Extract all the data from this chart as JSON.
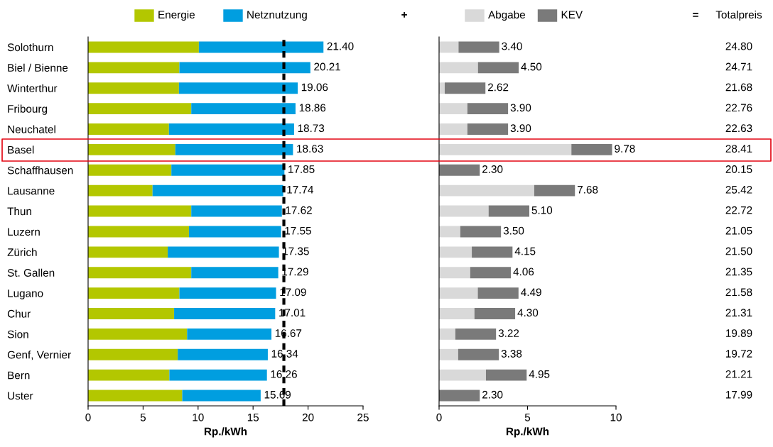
{
  "chart_data": [
    {
      "type": "bar",
      "orientation": "horizontal",
      "stacked": true,
      "xlabel": "Rp./kWh",
      "legend": "top",
      "categories": [
        "Solothurn",
        "Biel / Bienne",
        "Winterthur",
        "Fribourg",
        "Neuchatel",
        "Basel",
        "Schaffhausen",
        "Lausanne",
        "Thun",
        "Luzern",
        "Zürich",
        "St. Gallen",
        "Lugano",
        "Chur",
        "Sion",
        "Genf, Vernier",
        "Bern",
        "Uster"
      ],
      "series": [
        {
          "name": "Energie",
          "color": "#b3c700",
          "values": [
            10.07,
            8.3,
            8.26,
            9.38,
            7.35,
            7.93,
            7.57,
            5.86,
            9.38,
            9.17,
            7.24,
            9.38,
            8.3,
            7.82,
            9.0,
            8.15,
            7.39,
            8.56
          ]
        },
        {
          "name": "Netznutzung",
          "color": "#009ee0",
          "values": [
            11.33,
            11.91,
            10.8,
            9.48,
            11.38,
            10.7,
            10.28,
            11.88,
            8.24,
            8.38,
            10.11,
            7.91,
            8.79,
            9.19,
            7.67,
            8.19,
            8.87,
            7.13
          ]
        }
      ],
      "totals": [
        "21.40",
        "20.21",
        "19.06",
        "18.86",
        "18.73",
        "18.63",
        "17.85",
        "17.74",
        "17.62",
        "17.55",
        "17.35",
        "17.29",
        "17.09",
        "17.01",
        "16.67",
        "16.34",
        "16.26",
        "15.69"
      ],
      "xlim": [
        0,
        25
      ],
      "xticks": [
        0,
        5,
        10,
        15,
        20,
        25
      ],
      "ref_lines": [
        {
          "axis": "x",
          "value": 17.8,
          "color": "#000000",
          "line_style": "dashed"
        }
      ],
      "annotations": [
        "+"
      ]
    },
    {
      "type": "bar",
      "orientation": "horizontal",
      "stacked": true,
      "xlabel": "Rp./kWh",
      "legend": "top",
      "tick_labels": "x",
      "categories": [
        null,
        null,
        null,
        null,
        null,
        null,
        null,
        null,
        null,
        null,
        null,
        null,
        null,
        null,
        null,
        null,
        null,
        null
      ],
      "series": [
        {
          "name": "Abgabe",
          "color": "#d9d9d9",
          "values": [
            1.1,
            2.2,
            0.32,
            1.6,
            1.6,
            7.48,
            0,
            5.38,
            2.8,
            1.2,
            1.85,
            1.76,
            2.19,
            2.0,
            0.92,
            1.08,
            2.65,
            0
          ]
        },
        {
          "name": "KEV",
          "color": "#7a7a7a",
          "values": [
            2.3,
            2.3,
            2.3,
            2.3,
            2.3,
            2.3,
            2.3,
            2.3,
            2.3,
            2.3,
            2.3,
            2.3,
            2.3,
            2.3,
            2.3,
            2.3,
            2.3,
            2.3
          ]
        }
      ],
      "totals": [
        "3.40",
        "4.50",
        "2.62",
        "3.90",
        "3.90",
        "9.78",
        "2.30",
        "7.68",
        "5.10",
        "3.50",
        "4.15",
        "4.06",
        "4.49",
        "4.30",
        "3.22",
        "3.38",
        "4.95",
        "2.30"
      ],
      "xlim": [
        0,
        10
      ],
      "xticks": [
        0,
        5,
        10
      ],
      "annotations": [
        "="
      ]
    },
    {
      "type": "other",
      "title": "Totalpreis",
      "categories": [
        null,
        null,
        null,
        null,
        null,
        null,
        null,
        null,
        null,
        null,
        null,
        null,
        null,
        null,
        null,
        null,
        null,
        null
      ],
      "value_labels": [
        "24.80",
        "24.71",
        "21.68",
        "22.76",
        "22.63",
        "28.41",
        "20.15",
        "25.42",
        "22.72",
        "21.05",
        "21.50",
        "21.35",
        "21.58",
        "21.31",
        "19.89",
        "19.72",
        "21.21",
        "17.99"
      ]
    }
  ]
}
